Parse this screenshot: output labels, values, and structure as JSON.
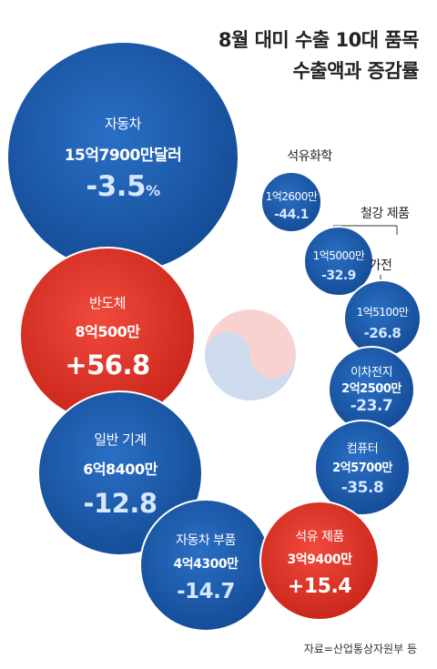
{
  "title_line1": "8월 대미 수출 10대 품목",
  "title_line2": "수출액과 증감률",
  "source": "자료=산업통상자원부 등",
  "colors": {
    "negative": "#1f5fb0",
    "positive": "#e8382f",
    "text_light": "#ffffff",
    "text_negative_value": "#d6e7ff"
  },
  "chart_data": {
    "type": "bubble",
    "title": "8월 대미 수출 10대 품목 수출액과 증감률",
    "items": [
      {
        "name": "자동차",
        "amount_label": "15억7900만달러",
        "change_label": "-3.5",
        "change_unit": "%",
        "change": -3.5
      },
      {
        "name": "석유화학",
        "amount_label": "1억2600만",
        "change_label": "-44.1",
        "change": -44.1
      },
      {
        "name": "철강 제품",
        "amount_label": "1억5000만",
        "change_label": "-32.9",
        "change": -32.9
      },
      {
        "name": "가전",
        "amount_label": "1억5100만",
        "change_label": "-26.8",
        "change": -26.8
      },
      {
        "name": "반도체",
        "amount_label": "8억500만",
        "change_label": "+56.8",
        "change": 56.8
      },
      {
        "name": "이차전지",
        "amount_label": "2억2500만",
        "change_label": "-23.7",
        "change": -23.7
      },
      {
        "name": "일반 기계",
        "amount_label": "6억8400만",
        "change_label": "-12.8",
        "change": -12.8
      },
      {
        "name": "컴퓨터",
        "amount_label": "2억5700만",
        "change_label": "-35.8",
        "change": -35.8
      },
      {
        "name": "자동차 부품",
        "amount_label": "4억4300만",
        "change_label": "-14.7",
        "change": -14.7
      },
      {
        "name": "석유 제품",
        "amount_label": "3억9400만",
        "change_label": "+15.4",
        "change": 15.4
      }
    ]
  }
}
